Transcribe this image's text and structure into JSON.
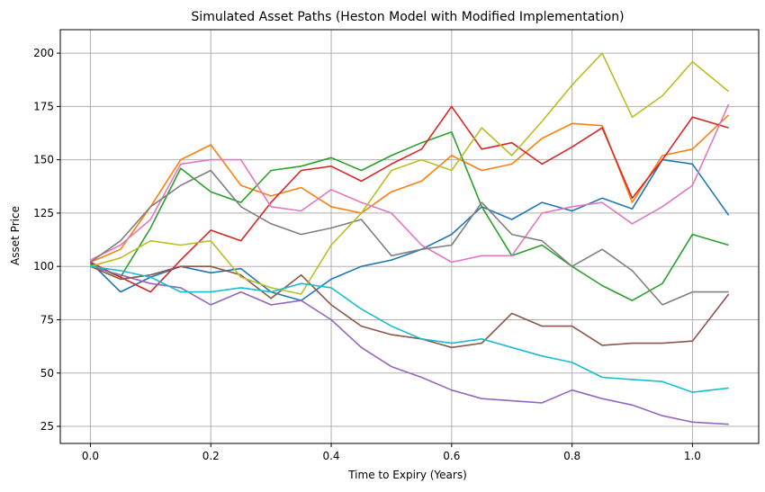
{
  "chart_data": {
    "type": "line",
    "title": "Simulated Asset Paths (Heston Model with Modified Implementation)",
    "xlabel": "Time to Expiry (Years)",
    "ylabel": "Asset Price",
    "xlim": [
      -0.05,
      1.11
    ],
    "ylim": [
      17,
      211
    ],
    "xticks": [
      0.0,
      0.2,
      0.4,
      0.6,
      0.8,
      1.0
    ],
    "xtick_labels": [
      "0.0",
      "0.2",
      "0.4",
      "0.6",
      "0.8",
      "1.0"
    ],
    "yticks": [
      25,
      50,
      75,
      100,
      125,
      150,
      175,
      200
    ],
    "ytick_labels": [
      "25",
      "50",
      "75",
      "100",
      "125",
      "150",
      "175",
      "200"
    ],
    "grid": true,
    "legend": "none",
    "x": [
      0.0,
      0.05,
      0.1,
      0.15,
      0.2,
      0.25,
      0.3,
      0.35,
      0.4,
      0.45,
      0.5,
      0.55,
      0.6,
      0.65,
      0.7,
      0.75,
      0.8,
      0.85,
      0.9,
      0.95,
      1.0,
      1.06
    ],
    "series": [
      {
        "color": "#1f77b4",
        "values": [
          102,
          88,
          95,
          100,
          97,
          99,
          88,
          84,
          94,
          100,
          103,
          108,
          115,
          128,
          122,
          130,
          126,
          132,
          127,
          150,
          148,
          124
        ]
      },
      {
        "color": "#ff7f0e",
        "values": [
          102,
          108,
          128,
          150,
          157,
          138,
          133,
          137,
          128,
          125,
          135,
          140,
          152,
          145,
          148,
          160,
          167,
          166,
          130,
          152,
          155,
          171
        ]
      },
      {
        "color": "#2ca02c",
        "values": [
          101,
          95,
          118,
          146,
          135,
          130,
          145,
          147,
          151,
          145,
          152,
          158,
          163,
          128,
          105,
          110,
          100,
          91,
          84,
          92,
          115,
          110
        ]
      },
      {
        "color": "#d62728",
        "values": [
          102,
          95,
          88,
          103,
          117,
          112,
          130,
          145,
          147,
          140,
          148,
          155,
          175,
          155,
          158,
          148,
          156,
          165,
          132,
          150,
          170,
          165
        ]
      },
      {
        "color": "#9467bd",
        "values": [
          100,
          96,
          92,
          90,
          82,
          88,
          82,
          84,
          75,
          62,
          53,
          48,
          42,
          38,
          37,
          36,
          42,
          38,
          35,
          30,
          27,
          26
        ]
      },
      {
        "color": "#8c564b",
        "values": [
          100,
          94,
          96,
          100,
          100,
          96,
          85,
          96,
          82,
          72,
          68,
          66,
          62,
          64,
          78,
          72,
          72,
          63,
          64,
          64,
          65,
          87
        ]
      },
      {
        "color": "#e377c2",
        "values": [
          103,
          110,
          122,
          148,
          150,
          150,
          128,
          126,
          136,
          130,
          125,
          110,
          102,
          105,
          105,
          125,
          128,
          130,
          120,
          128,
          138,
          176
        ]
      },
      {
        "color": "#7f7f7f",
        "values": [
          102,
          112,
          128,
          138,
          145,
          128,
          120,
          115,
          118,
          122,
          105,
          108,
          110,
          130,
          115,
          112,
          100,
          108,
          98,
          82,
          88,
          88
        ]
      },
      {
        "color": "#bcbd22",
        "values": [
          100,
          104,
          112,
          110,
          112,
          95,
          90,
          87,
          110,
          125,
          145,
          150,
          145,
          165,
          152,
          168,
          185,
          200,
          170,
          180,
          196,
          182
        ]
      },
      {
        "color": "#17becf",
        "values": [
          100,
          98,
          95,
          88,
          88,
          90,
          88,
          92,
          90,
          80,
          72,
          66,
          64,
          66,
          62,
          58,
          55,
          48,
          47,
          46,
          41,
          43
        ]
      }
    ]
  }
}
